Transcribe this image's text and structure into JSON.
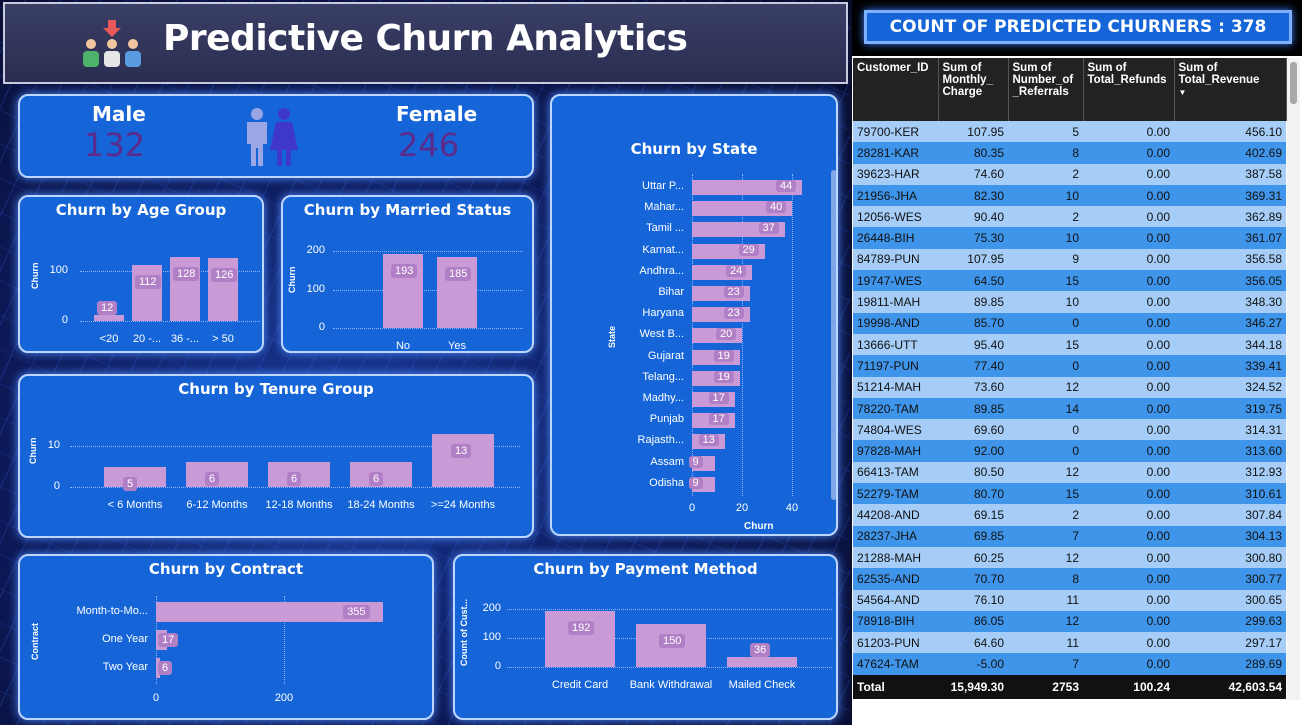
{
  "header": {
    "title": "Predictive Churn Analytics"
  },
  "gender": {
    "male_label": "Male",
    "male_value": "132",
    "female_label": "Female",
    "female_value": "246"
  },
  "age": {
    "title": "Churn by Age Group",
    "ylabel": "Churn",
    "yticks": [
      "100",
      "0"
    ],
    "categories": [
      "<20",
      "20 -...",
      "36 -...",
      "> 50"
    ],
    "values": [
      12,
      112,
      128,
      126
    ]
  },
  "married": {
    "title": "Churn by Married Status",
    "ylabel": "Churn",
    "yticks": [
      "200",
      "100",
      "0"
    ],
    "categories": [
      "No",
      "Yes"
    ],
    "values": [
      193,
      185
    ]
  },
  "tenure": {
    "title": "Churn by Tenure Group",
    "ylabel": "Churn",
    "yticks": [
      "10",
      "0"
    ],
    "categories": [
      "< 6 Months",
      "6-12 Months",
      "12-18 Months",
      "18-24 Months",
      ">=24 Months"
    ],
    "values": [
      5,
      6,
      6,
      6,
      13
    ]
  },
  "state": {
    "title": "Churn by State",
    "ylabel": "State",
    "xlabel": "Churn",
    "xticks": [
      "0",
      "20",
      "40"
    ],
    "categories": [
      "Uttar P...",
      "Mahar...",
      "Tamil ...",
      "Karnat...",
      "Andhra...",
      "Bihar",
      "Haryana",
      "West B...",
      "Gujarat",
      "Telang...",
      "Madhy...",
      "Punjab",
      "Rajasth...",
      "Assam",
      "Odisha"
    ],
    "values": [
      44,
      40,
      37,
      29,
      24,
      23,
      23,
      20,
      19,
      19,
      17,
      17,
      13,
      9,
      9
    ]
  },
  "contract": {
    "title": "Churn by Contract",
    "ylabel": "Contract",
    "xticks": [
      "0",
      "200"
    ],
    "categories": [
      "Month-to-Mo...",
      "One Year",
      "Two Year"
    ],
    "values": [
      355,
      17,
      6
    ]
  },
  "payment": {
    "title": "Churn by Payment Method",
    "ylabel": "Count of Cust...",
    "yticks": [
      "200",
      "100",
      "0"
    ],
    "categories": [
      "Credit Card",
      "Bank Withdrawal",
      "Mailed Check"
    ],
    "values": [
      192,
      150,
      36
    ]
  },
  "table": {
    "banner": "COUNT OF PREDICTED CHURNERS : 378",
    "columns": [
      "Customer_ID",
      "Sum of Monthly_ Charge",
      "Sum of Number_of _Referrals",
      "Sum of Total_Refunds",
      "Sum of Total_Revenue"
    ],
    "rows": [
      [
        "79700-KER",
        "107.95",
        "5",
        "0.00",
        "456.10"
      ],
      [
        "28281-KAR",
        "80.35",
        "8",
        "0.00",
        "402.69"
      ],
      [
        "39623-HAR",
        "74.60",
        "2",
        "0.00",
        "387.58"
      ],
      [
        "21956-JHA",
        "82.30",
        "10",
        "0.00",
        "369.31"
      ],
      [
        "12056-WES",
        "90.40",
        "2",
        "0.00",
        "362.89"
      ],
      [
        "26448-BIH",
        "75.30",
        "10",
        "0.00",
        "361.07"
      ],
      [
        "84789-PUN",
        "107.95",
        "9",
        "0.00",
        "356.58"
      ],
      [
        "19747-WES",
        "64.50",
        "15",
        "0.00",
        "356.05"
      ],
      [
        "19811-MAH",
        "89.85",
        "10",
        "0.00",
        "348.30"
      ],
      [
        "19998-AND",
        "85.70",
        "0",
        "0.00",
        "346.27"
      ],
      [
        "13666-UTT",
        "95.40",
        "15",
        "0.00",
        "344.18"
      ],
      [
        "71197-PUN",
        "77.40",
        "0",
        "0.00",
        "339.41"
      ],
      [
        "51214-MAH",
        "73.60",
        "12",
        "0.00",
        "324.52"
      ],
      [
        "78220-TAM",
        "89.85",
        "14",
        "0.00",
        "319.75"
      ],
      [
        "74804-WES",
        "69.60",
        "0",
        "0.00",
        "314.31"
      ],
      [
        "97828-MAH",
        "92.00",
        "0",
        "0.00",
        "313.60"
      ],
      [
        "66413-TAM",
        "80.50",
        "12",
        "0.00",
        "312.93"
      ],
      [
        "52279-TAM",
        "80.70",
        "15",
        "0.00",
        "310.61"
      ],
      [
        "44208-AND",
        "69.15",
        "2",
        "0.00",
        "307.84"
      ],
      [
        "28237-JHA",
        "69.85",
        "7",
        "0.00",
        "304.13"
      ],
      [
        "21288-MAH",
        "60.25",
        "12",
        "0.00",
        "300.80"
      ],
      [
        "62535-AND",
        "70.70",
        "8",
        "0.00",
        "300.77"
      ],
      [
        "54564-AND",
        "76.10",
        "11",
        "0.00",
        "300.65"
      ],
      [
        "78918-BIH",
        "86.05",
        "12",
        "0.00",
        "299.63"
      ],
      [
        "61203-PUN",
        "64.60",
        "11",
        "0.00",
        "297.17"
      ],
      [
        "47624-TAM",
        "-5.00",
        "7",
        "0.00",
        "289.69"
      ]
    ],
    "total": [
      "Total",
      "15,949.30",
      "2753",
      "100.24",
      "42,603.54"
    ]
  },
  "colors": {
    "panel": "#1565d8",
    "bar": "#c99ad6",
    "male": "#9aa6e6",
    "female": "#3f37c9",
    "value_text": "#5b2a8a"
  }
}
